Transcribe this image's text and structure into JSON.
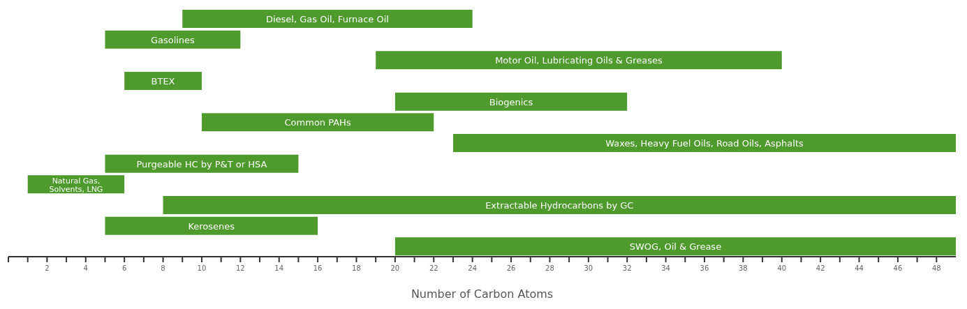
{
  "chart_data": {
    "type": "bar",
    "orientation": "horizontal",
    "xlabel": "Number of Carbon Atoms",
    "categories": [
      "Diesel, Gas Oil, Furnace Oil",
      "Gasolines",
      "Motor Oil, Lubricating Oils & Greases",
      "BTEX",
      "Biogenics",
      "Common PAHs",
      "Waxes, Heavy Fuel Oils, Road Oils, Asphalts",
      "Purgeable HC by P&T or HSA",
      "Natural Gas, Solvents, LNG",
      "Extractable Hydrocarbons by GC",
      "Kerosenes",
      "SWOG, Oil & Grease"
    ],
    "base": [
      9,
      5,
      19,
      6,
      20,
      10,
      23,
      5,
      1,
      8,
      5,
      20
    ],
    "values": [
      15,
      7,
      21,
      4,
      12,
      12,
      26,
      10,
      5,
      41,
      11,
      29
    ],
    "color": "#4e9a2c",
    "xlim": [
      0,
      49
    ],
    "xticks": [
      {
        "value": 0,
        "label": null
      },
      {
        "value": 1,
        "label": null
      },
      2,
      {
        "value": 3,
        "label": null
      },
      4,
      {
        "value": 5,
        "label": null
      },
      6,
      {
        "value": 7,
        "label": null
      },
      8,
      {
        "value": 9,
        "label": null
      },
      10,
      {
        "value": 11,
        "label": null
      },
      12,
      {
        "value": 13,
        "label": null
      },
      14,
      {
        "value": 15,
        "label": null
      },
      16,
      {
        "value": 17,
        "label": null
      },
      18,
      {
        "value": 19,
        "label": null
      },
      20,
      {
        "value": 21,
        "label": null
      },
      22,
      {
        "value": 23,
        "label": null
      },
      24,
      {
        "value": 25,
        "label": null
      },
      26,
      {
        "value": 27,
        "label": null
      },
      28,
      {
        "value": 29,
        "label": null
      },
      30,
      {
        "value": 31,
        "label": null
      },
      32,
      {
        "value": 33,
        "label": null
      },
      34,
      {
        "value": 35,
        "label": null
      },
      36,
      {
        "value": 37,
        "label": null
      },
      38,
      {
        "value": 39,
        "label": null
      },
      40,
      {
        "value": 41,
        "label": null
      },
      42,
      {
        "value": 43,
        "label": null
      },
      44,
      {
        "value": 45,
        "label": null
      },
      46,
      {
        "value": 47,
        "label": null
      },
      48
    ],
    "grid": false,
    "legend": false
  }
}
